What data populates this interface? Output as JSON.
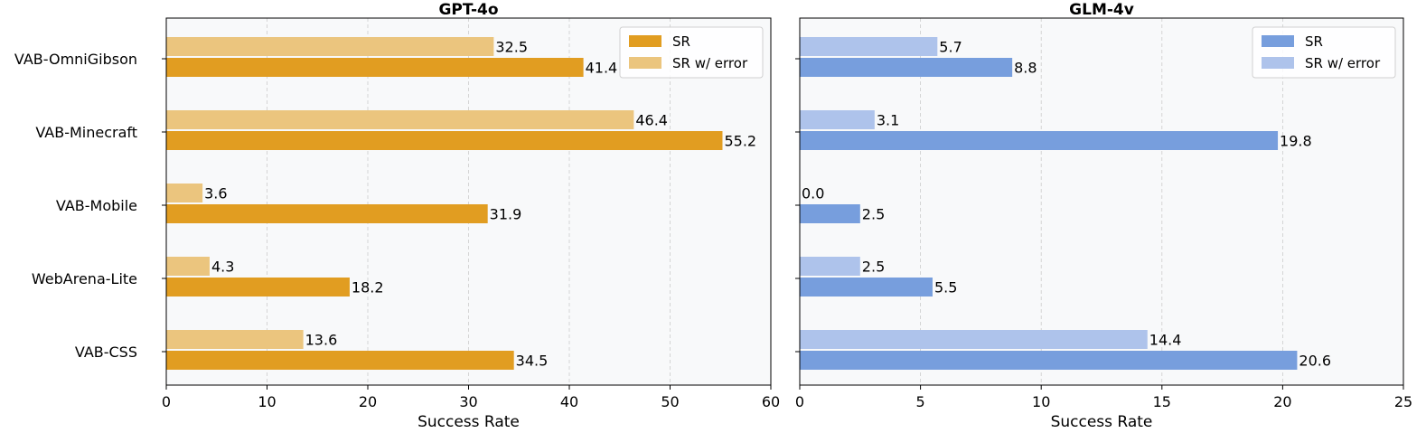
{
  "chart_data": [
    {
      "type": "bar",
      "orientation": "horizontal",
      "title": "GPT-4o",
      "xlabel": "Success Rate",
      "ylabel": "",
      "xlim": [
        0,
        60
      ],
      "xticks": [
        0,
        10,
        20,
        30,
        40,
        50,
        60
      ],
      "grid": true,
      "legend_position": "top-right",
      "categories": [
        "VAB-OmniGibson",
        "VAB-Minecraft",
        "VAB-Mobile",
        "WebArena-Lite",
        "VAB-CSS"
      ],
      "show_category_labels": true,
      "series": [
        {
          "name": "SR",
          "values": [
            41.4,
            55.2,
            31.9,
            18.2,
            34.5
          ],
          "color": "#E19D21"
        },
        {
          "name": "SR w/ error",
          "values": [
            32.5,
            46.4,
            3.6,
            4.3,
            13.6
          ],
          "color": "#EBC57E"
        }
      ]
    },
    {
      "type": "bar",
      "orientation": "horizontal",
      "title": "GLM-4v",
      "xlabel": "Success Rate",
      "ylabel": "",
      "xlim": [
        0,
        25
      ],
      "xticks": [
        0,
        5,
        10,
        15,
        20,
        25
      ],
      "grid": true,
      "legend_position": "top-right",
      "categories": [
        "VAB-OmniGibson",
        "VAB-Minecraft",
        "VAB-Mobile",
        "WebArena-Lite",
        "VAB-CSS"
      ],
      "show_category_labels": false,
      "series": [
        {
          "name": "SR",
          "values": [
            8.8,
            19.8,
            2.5,
            5.5,
            20.6
          ],
          "color": "#779EDD"
        },
        {
          "name": "SR w/ error",
          "values": [
            5.7,
            3.1,
            0.0,
            2.5,
            14.4
          ],
          "color": "#AEC3EB"
        }
      ]
    }
  ]
}
